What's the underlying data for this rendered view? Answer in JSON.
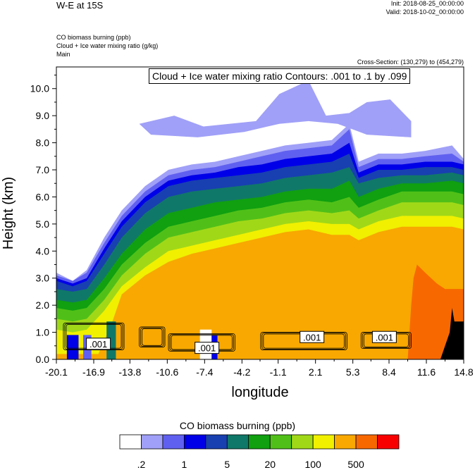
{
  "title": "W-E at 15S",
  "init": "Init: 2018-08-25_00:00:00",
  "valid": "Valid: 2018-10-02_00:00:00",
  "fields": [
    "CO biomass burning   (ppb)",
    "Cloud + Ice water mixing ratio   (g/kg)",
    "Main"
  ],
  "cross_section": "Cross-Section: (130,279) to (454,279)",
  "contour_info": "Cloud + Ice water mixing ratio Contours: .001 to .1 by .099",
  "colorbar": {
    "title": "CO biomass burning  (ppb)",
    "colors": [
      "#ffffff",
      "#a0a0f8",
      "#6060f0",
      "#0000e8",
      "#1840b0",
      "#107868",
      "#10a010",
      "#50c018",
      "#a0d818",
      "#f0f000",
      "#f8a800",
      "#f86800",
      "#f80000"
    ],
    "tick_labels": [
      ".2",
      "1",
      "5",
      "20",
      "100",
      "500"
    ]
  },
  "contour_labels": [
    ".001",
    ".001",
    ".001",
    ".001"
  ],
  "chart_data": {
    "type": "heatmap",
    "title": "W-E at 15S",
    "xlabel": "longitude",
    "ylabel": "Height (km)",
    "x_ticks": [
      "-20.1",
      "-16.9",
      "-13.8",
      "-10.6",
      "-7.4",
      "-4.2",
      "-1.1",
      "2.1",
      "5.3",
      "8.4",
      "11.6",
      "14.8"
    ],
    "y_ticks": [
      "0.0",
      "1.0",
      "2.0",
      "3.0",
      "4.0",
      "5.0",
      "6.0",
      "7.0",
      "8.0",
      "9.0",
      "10.0"
    ],
    "xlim": [
      -20.1,
      14.8
    ],
    "ylim": [
      0,
      10.8
    ],
    "co_layers": [
      {
        "level_index": 1,
        "top": [
          [
            -20.1,
            3.2
          ],
          [
            -18.7,
            2.9
          ],
          [
            -17.5,
            3.3
          ],
          [
            -16.0,
            4.5
          ],
          [
            -14.5,
            5.5
          ],
          [
            -12.5,
            6.4
          ],
          [
            -10.5,
            7.0
          ],
          [
            -8.5,
            7.2
          ],
          [
            -6.5,
            7.3
          ],
          [
            -4.5,
            7.5
          ],
          [
            -2.5,
            7.7
          ],
          [
            -0.5,
            7.9
          ],
          [
            1.5,
            8.0
          ],
          [
            3.5,
            8.1
          ],
          [
            5.0,
            8.7
          ],
          [
            5.8,
            7.3
          ],
          [
            7.5,
            7.6
          ],
          [
            9.5,
            7.6
          ],
          [
            11.5,
            7.7
          ],
          [
            13.8,
            7.9
          ],
          [
            14.8,
            7.4
          ]
        ]
      },
      {
        "level_index": 2,
        "top": [
          [
            -20.1,
            3.1
          ],
          [
            -18.7,
            2.9
          ],
          [
            -17.5,
            3.2
          ],
          [
            -16.0,
            4.3
          ],
          [
            -14.5,
            5.3
          ],
          [
            -12.5,
            6.2
          ],
          [
            -10.5,
            6.8
          ],
          [
            -8.5,
            7.0
          ],
          [
            -6.5,
            7.1
          ],
          [
            -4.5,
            7.3
          ],
          [
            -2.5,
            7.5
          ],
          [
            -0.5,
            7.7
          ],
          [
            1.5,
            7.8
          ],
          [
            3.5,
            7.9
          ],
          [
            5.0,
            8.5
          ],
          [
            5.8,
            7.1
          ],
          [
            7.5,
            7.4
          ],
          [
            9.5,
            7.4
          ],
          [
            11.5,
            7.5
          ],
          [
            13.8,
            7.6
          ],
          [
            14.8,
            7.3
          ]
        ]
      },
      {
        "level_index": 3,
        "top": [
          [
            -20.1,
            3.0
          ],
          [
            -18.7,
            2.8
          ],
          [
            -17.5,
            3.0
          ],
          [
            -16.0,
            4.1
          ],
          [
            -14.5,
            5.1
          ],
          [
            -12.5,
            6.0
          ],
          [
            -10.5,
            6.6
          ],
          [
            -8.5,
            6.8
          ],
          [
            -6.5,
            6.9
          ],
          [
            -4.5,
            7.1
          ],
          [
            -2.5,
            7.2
          ],
          [
            -0.5,
            7.4
          ],
          [
            1.5,
            7.5
          ],
          [
            3.5,
            7.6
          ],
          [
            5.0,
            8.0
          ],
          [
            5.8,
            6.9
          ],
          [
            7.5,
            7.2
          ],
          [
            9.5,
            7.2
          ],
          [
            11.5,
            7.3
          ],
          [
            13.8,
            7.3
          ],
          [
            14.8,
            7.2
          ]
        ]
      },
      {
        "level_index": 4,
        "top": [
          [
            -20.1,
            2.9
          ],
          [
            -18.7,
            2.7
          ],
          [
            -17.5,
            2.9
          ],
          [
            -16.0,
            3.9
          ],
          [
            -14.5,
            4.9
          ],
          [
            -12.5,
            5.8
          ],
          [
            -10.5,
            6.4
          ],
          [
            -8.5,
            6.6
          ],
          [
            -6.5,
            6.7
          ],
          [
            -4.5,
            6.8
          ],
          [
            -2.5,
            6.9
          ],
          [
            -0.5,
            7.1
          ],
          [
            1.5,
            7.2
          ],
          [
            3.5,
            7.3
          ],
          [
            5.0,
            7.6
          ],
          [
            5.8,
            6.7
          ],
          [
            7.5,
            7.0
          ],
          [
            9.5,
            7.0
          ],
          [
            11.5,
            7.1
          ],
          [
            13.8,
            7.1
          ],
          [
            14.8,
            7.0
          ]
        ]
      },
      {
        "level_index": 5,
        "top": [
          [
            -20.1,
            2.6
          ],
          [
            -18.7,
            2.5
          ],
          [
            -17.5,
            2.6
          ],
          [
            -16.0,
            3.5
          ],
          [
            -14.5,
            4.5
          ],
          [
            -12.5,
            5.4
          ],
          [
            -10.5,
            6.0
          ],
          [
            -8.5,
            6.2
          ],
          [
            -6.5,
            6.3
          ],
          [
            -4.5,
            6.4
          ],
          [
            -2.5,
            6.5
          ],
          [
            -0.5,
            6.7
          ],
          [
            1.5,
            6.8
          ],
          [
            3.5,
            6.9
          ],
          [
            5.0,
            7.1
          ],
          [
            5.8,
            6.5
          ],
          [
            7.5,
            6.7
          ],
          [
            9.5,
            6.8
          ],
          [
            11.5,
            6.8
          ],
          [
            13.8,
            6.9
          ],
          [
            14.8,
            6.8
          ]
        ]
      },
      {
        "level_index": 6,
        "top": [
          [
            -20.1,
            2.2
          ],
          [
            -18.7,
            2.1
          ],
          [
            -17.5,
            2.2
          ],
          [
            -16.0,
            3.0
          ],
          [
            -14.5,
            3.9
          ],
          [
            -12.5,
            4.8
          ],
          [
            -10.5,
            5.4
          ],
          [
            -8.5,
            5.6
          ],
          [
            -6.5,
            5.8
          ],
          [
            -4.5,
            5.9
          ],
          [
            -2.5,
            6.0
          ],
          [
            -0.5,
            6.2
          ],
          [
            1.5,
            6.3
          ],
          [
            3.5,
            6.3
          ],
          [
            5.0,
            6.6
          ],
          [
            5.8,
            6.0
          ],
          [
            7.5,
            6.3
          ],
          [
            9.5,
            6.5
          ],
          [
            11.5,
            6.5
          ],
          [
            13.8,
            6.6
          ],
          [
            14.8,
            6.5
          ]
        ]
      },
      {
        "level_index": 7,
        "top": [
          [
            -20.1,
            1.9
          ],
          [
            -18.7,
            1.8
          ],
          [
            -17.5,
            1.9
          ],
          [
            -16.0,
            2.6
          ],
          [
            -14.5,
            3.5
          ],
          [
            -12.5,
            4.3
          ],
          [
            -10.5,
            4.9
          ],
          [
            -8.5,
            5.1
          ],
          [
            -6.5,
            5.3
          ],
          [
            -4.5,
            5.5
          ],
          [
            -2.5,
            5.6
          ],
          [
            -0.5,
            5.8
          ],
          [
            1.5,
            5.9
          ],
          [
            3.5,
            5.8
          ],
          [
            5.0,
            6.0
          ],
          [
            5.8,
            5.6
          ],
          [
            7.5,
            5.9
          ],
          [
            9.5,
            6.2
          ],
          [
            11.5,
            6.2
          ],
          [
            13.8,
            6.2
          ],
          [
            14.8,
            6.1
          ]
        ]
      },
      {
        "level_index": 8,
        "top": [
          [
            -20.1,
            1.5
          ],
          [
            -18.7,
            1.4
          ],
          [
            -17.5,
            1.5
          ],
          [
            -16.0,
            2.2
          ],
          [
            -14.5,
            3.1
          ],
          [
            -12.5,
            3.9
          ],
          [
            -10.5,
            4.5
          ],
          [
            -8.5,
            4.7
          ],
          [
            -6.5,
            4.9
          ],
          [
            -4.5,
            5.1
          ],
          [
            -2.5,
            5.2
          ],
          [
            -0.5,
            5.4
          ],
          [
            1.5,
            5.5
          ],
          [
            3.5,
            5.4
          ],
          [
            5.0,
            5.5
          ],
          [
            5.8,
            5.2
          ],
          [
            7.5,
            5.5
          ],
          [
            9.5,
            5.8
          ],
          [
            11.5,
            5.8
          ],
          [
            13.8,
            5.8
          ],
          [
            14.8,
            5.7
          ]
        ]
      },
      {
        "level_index": 9,
        "top": [
          [
            -20.1,
            1.1
          ],
          [
            -18.7,
            1.0
          ],
          [
            -17.5,
            1.1
          ],
          [
            -16.0,
            1.8
          ],
          [
            -14.5,
            2.7
          ],
          [
            -12.5,
            3.4
          ],
          [
            -10.5,
            4.0
          ],
          [
            -8.5,
            4.2
          ],
          [
            -6.5,
            4.4
          ],
          [
            -4.5,
            4.6
          ],
          [
            -2.5,
            4.8
          ],
          [
            -0.5,
            5.0
          ],
          [
            1.5,
            5.1
          ],
          [
            3.5,
            5.0
          ],
          [
            5.0,
            5.0
          ],
          [
            5.8,
            4.8
          ],
          [
            7.5,
            5.1
          ],
          [
            9.5,
            5.3
          ],
          [
            11.5,
            5.3
          ],
          [
            13.8,
            5.3
          ],
          [
            14.8,
            5.2
          ]
        ]
      },
      {
        "level_index": 10,
        "top": [
          [
            -20.1,
            0.2
          ],
          [
            -16.5,
            0.2
          ],
          [
            -15.3,
            1.4
          ],
          [
            -14.5,
            2.4
          ],
          [
            -12.5,
            3.1
          ],
          [
            -10.5,
            3.6
          ],
          [
            -8.5,
            3.9
          ],
          [
            -6.5,
            4.1
          ],
          [
            -4.5,
            4.3
          ],
          [
            -2.5,
            4.5
          ],
          [
            -0.5,
            4.7
          ],
          [
            1.5,
            4.8
          ],
          [
            3.5,
            4.6
          ],
          [
            5.0,
            4.6
          ],
          [
            5.8,
            4.4
          ],
          [
            7.5,
            4.7
          ],
          [
            9.5,
            4.9
          ],
          [
            11.5,
            4.9
          ],
          [
            13.8,
            4.9
          ],
          [
            14.8,
            4.8
          ]
        ]
      },
      {
        "level_index": 11,
        "top": [
          [
            -20.1,
            0.0
          ],
          [
            10.0,
            0.0
          ],
          [
            10.3,
            2.0
          ],
          [
            10.5,
            3.0
          ],
          [
            10.8,
            3.5
          ],
          [
            11.5,
            3.2
          ],
          [
            12.5,
            2.8
          ],
          [
            13.2,
            2.6
          ],
          [
            14.8,
            2.6
          ]
        ]
      }
    ],
    "low_level_patches": [
      {
        "level_index": 3,
        "x_range": [
          -19.2,
          -18.2
        ],
        "z_range": [
          0.0,
          0.9
        ]
      },
      {
        "level_index": 2,
        "x_range": [
          -17.8,
          -17.1
        ],
        "z_range": [
          0.0,
          0.9
        ]
      },
      {
        "level_index": 5,
        "x_range": [
          -15.8,
          -15.0
        ],
        "z_range": [
          0.0,
          1.4
        ]
      },
      {
        "level_index": 0,
        "x_range": [
          -7.8,
          -6.8
        ],
        "z_range": [
          0.0,
          1.1
        ]
      },
      {
        "level_index": 3,
        "x_range": [
          -6.8,
          -6.3
        ],
        "z_range": [
          0.0,
          0.9
        ]
      }
    ],
    "terrain_black": [
      [
        12.8,
        0.0
      ],
      [
        13.2,
        0.5
      ],
      [
        13.6,
        1.0
      ],
      [
        13.8,
        1.9
      ],
      [
        14.0,
        1.4
      ],
      [
        14.8,
        1.4
      ],
      [
        14.8,
        0.0
      ]
    ],
    "upper_cloud_patch": {
      "level_index": 1,
      "outline": [
        [
          -13.0,
          8.7
        ],
        [
          -10.0,
          9.0
        ],
        [
          -7.5,
          8.6
        ],
        [
          -3.0,
          8.8
        ],
        [
          -1.0,
          9.8
        ],
        [
          1.5,
          10.3
        ],
        [
          3.0,
          9.0
        ],
        [
          5.0,
          9.1
        ],
        [
          6.5,
          9.5
        ],
        [
          8.5,
          9.6
        ],
        [
          10.3,
          8.8
        ],
        [
          10.3,
          8.2
        ],
        [
          6.5,
          8.3
        ],
        [
          4.0,
          8.7
        ],
        [
          1.5,
          8.8
        ],
        [
          -1.0,
          8.7
        ],
        [
          -4.0,
          8.4
        ],
        [
          -8.0,
          8.2
        ],
        [
          -12.0,
          8.3
        ]
      ]
    },
    "cloud_contours": [
      {
        "level": 0.001,
        "x_range": [
          -19.5,
          -14.3
        ],
        "z_range": [
          0.35,
          1.35
        ]
      },
      {
        "level": 0.001,
        "x_range": [
          -13.0,
          -10.8
        ],
        "z_range": [
          0.45,
          1.2
        ]
      },
      {
        "level": 0.001,
        "x_range": [
          -10.5,
          -4.8
        ],
        "z_range": [
          0.3,
          0.95
        ]
      },
      {
        "level": 0.001,
        "x_range": [
          -2.6,
          4.8
        ],
        "z_range": [
          0.35,
          1.0
        ]
      },
      {
        "level": 0.001,
        "x_range": [
          6.0,
          10.3
        ],
        "z_range": [
          0.4,
          1.0
        ]
      }
    ],
    "contour_label_x": [
      -16.5,
      -7.2,
      1.8,
      8.0
    ],
    "contour_label_z": [
      0.55,
      0.4,
      0.8,
      0.8
    ]
  }
}
